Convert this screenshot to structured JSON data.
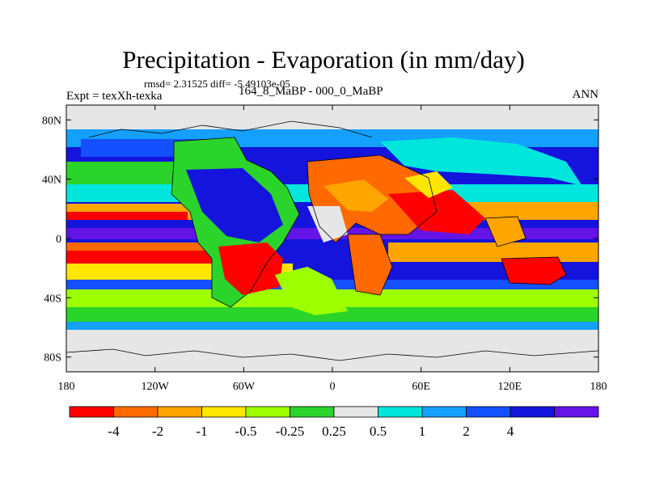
{
  "title": "Precipitation - Evaporation (in mm/day)",
  "stats": "rmsd= 2.31525 diff= -5.49103e-05",
  "experiment": "Expt = texXh-texka",
  "period": "164_8_MaBP - 000_0_MaBP",
  "season": "ANN",
  "map": {
    "lat_range": [
      -90,
      90
    ],
    "lon_range": [
      -180,
      180
    ],
    "lat_ticks": [
      "80N",
      "40N",
      "0",
      "40S",
      "80S"
    ],
    "lon_ticks": [
      "180",
      "120W",
      "60W",
      "0",
      "60E",
      "120E",
      "180"
    ]
  },
  "legend": {
    "colors": [
      "#ff0000",
      "#ff6a00",
      "#ffa500",
      "#ffe600",
      "#9dff00",
      "#2ad42a",
      "#e6e6e6",
      "#00e6dc",
      "#14a0ff",
      "#1450ff",
      "#1414dc",
      "#6414e6"
    ],
    "labels": [
      "-4",
      "-2",
      "-1",
      "-0.5",
      "-0.25",
      "0.25",
      "0.5",
      "1",
      "2",
      "4"
    ]
  },
  "palette": {
    "land_outline": "#000000",
    "background": "#e6e6e6"
  }
}
